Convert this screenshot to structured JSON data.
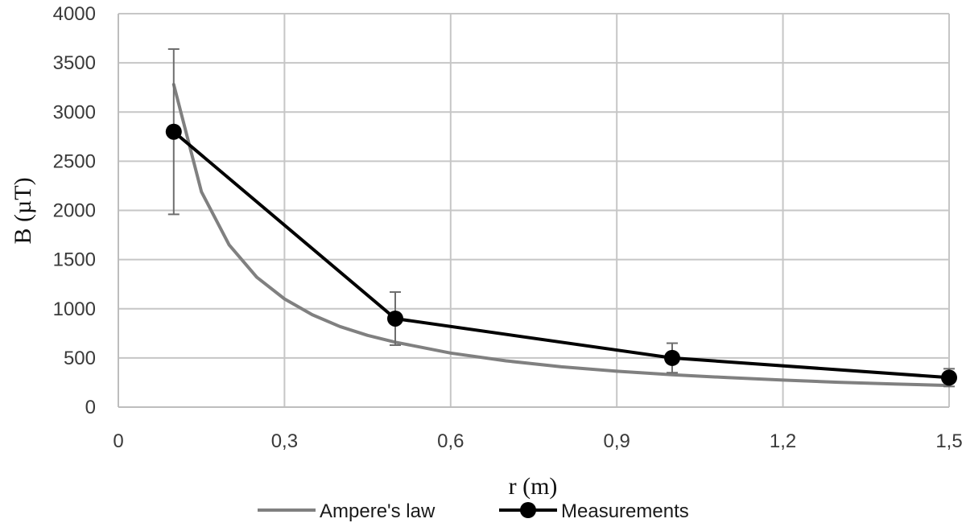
{
  "chart_data": {
    "type": "line",
    "xlabel": "r (m)",
    "ylabel": "B (µT)",
    "xlim": [
      0,
      1.5
    ],
    "ylim": [
      0,
      4000
    ],
    "x_ticks": [
      0,
      0.3,
      0.6,
      0.9,
      1.2,
      1.5
    ],
    "x_tick_labels": [
      "0",
      "0,3",
      "0,6",
      "0,9",
      "1,2",
      "1,5"
    ],
    "y_ticks": [
      0,
      500,
      1000,
      1500,
      2000,
      2500,
      3000,
      3500,
      4000
    ],
    "y_tick_labels": [
      "0",
      "500",
      "1000",
      "1500",
      "2000",
      "2500",
      "3000",
      "3500",
      "4000"
    ],
    "grid": true,
    "legend_position": "bottom-center",
    "series": [
      {
        "name": "Ampere's law",
        "color": "#808080",
        "marker": "none",
        "x": [
          0.1,
          0.15,
          0.2,
          0.25,
          0.3,
          0.35,
          0.4,
          0.45,
          0.5,
          0.6,
          0.7,
          0.8,
          0.9,
          1.0,
          1.1,
          1.2,
          1.3,
          1.4,
          1.5
        ],
        "y": [
          3280,
          2190,
          1650,
          1320,
          1100,
          940,
          820,
          730,
          660,
          550,
          470,
          410,
          365,
          330,
          300,
          275,
          253,
          235,
          220
        ]
      },
      {
        "name": "Measurements",
        "color": "#000000",
        "marker": "circle",
        "x": [
          0.1,
          0.5,
          1.0,
          1.5
        ],
        "y": [
          2800,
          900,
          500,
          300
        ],
        "error_low": [
          1960,
          630,
          350,
          210
        ],
        "error_high": [
          3640,
          1170,
          650,
          390
        ]
      }
    ]
  }
}
